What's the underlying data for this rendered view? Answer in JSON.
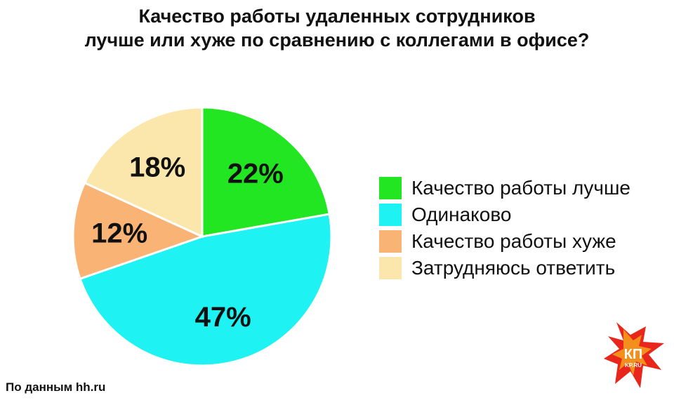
{
  "title_line1": "Качество работы удаленных сотрудников",
  "title_line2": "лучше или хуже по сравнению с коллегами в офисе?",
  "source": "По данным hh.ru",
  "logo_text": "КП",
  "logo_sub": "KP.RU",
  "chart_data": {
    "type": "pie",
    "title": "Качество работы удаленных сотрудников лучше или хуже по сравнению с коллегами в офисе?",
    "unit": "%",
    "slices": [
      {
        "label": "Качество работы лучше",
        "value": 22,
        "display": "22%",
        "color": "#22e622"
      },
      {
        "label": "Одинаково",
        "value": 47,
        "display": "47%",
        "color": "#1ff2f2"
      },
      {
        "label": "Качество работы хуже",
        "value": 12,
        "display": "12%",
        "color": "#f9b475"
      },
      {
        "label": "Затрудняюсь ответить",
        "value": 18,
        "display": "18%",
        "color": "#fbe7ac"
      }
    ],
    "start": "12 o'clock",
    "direction": "clockwise",
    "legend": "right"
  }
}
